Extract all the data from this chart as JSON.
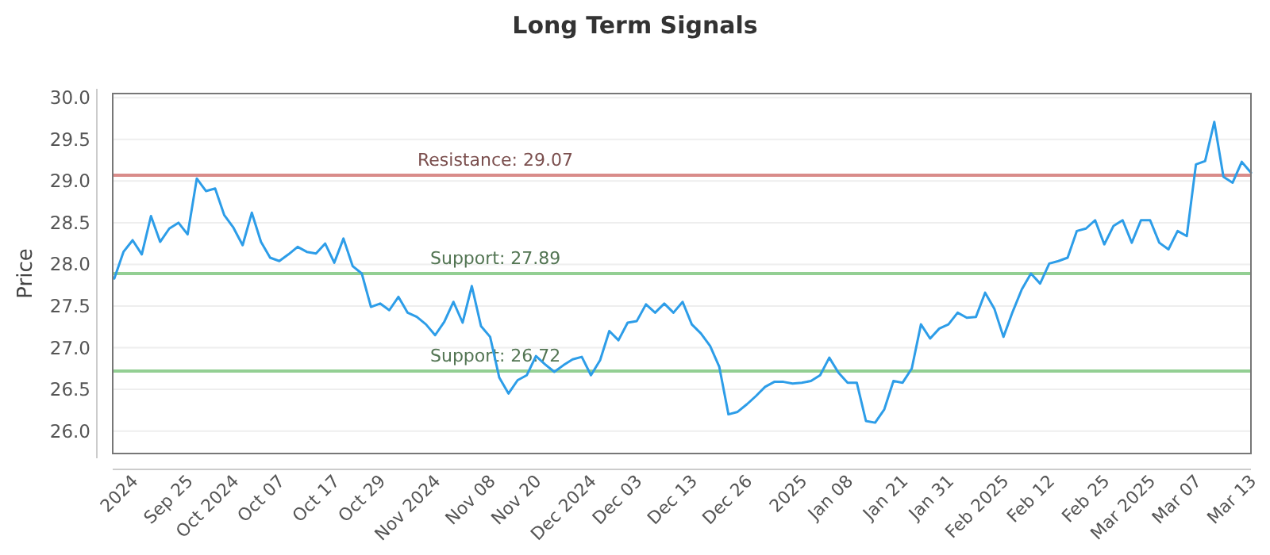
{
  "chart_data": {
    "type": "line",
    "title": "Long Term Signals",
    "ylabel": "Price",
    "categories": [
      null,
      null,
      "2024",
      null,
      null,
      null,
      null,
      null,
      "Sep 25",
      null,
      null,
      null,
      null,
      "Oct 2024",
      null,
      null,
      null,
      null,
      "Oct 07",
      null,
      null,
      null,
      null,
      null,
      "Oct 17",
      null,
      null,
      null,
      null,
      "Oct 29",
      null,
      null,
      null,
      null,
      null,
      "Nov 2024",
      null,
      null,
      null,
      null,
      null,
      "Nov 08",
      null,
      null,
      null,
      null,
      "Nov 20",
      null,
      null,
      null,
      null,
      null,
      "Dec 2024",
      null,
      null,
      null,
      null,
      "Dec 03",
      null,
      null,
      null,
      null,
      null,
      "Dec 13",
      null,
      null,
      null,
      null,
      null,
      "Dec 26",
      null,
      null,
      null,
      null,
      null,
      "2025",
      null,
      null,
      null,
      null,
      "Jan 08",
      null,
      null,
      null,
      null,
      null,
      "Jan 21",
      null,
      null,
      null,
      null,
      "Jan 31",
      null,
      null,
      null,
      null,
      null,
      "Feb 2025",
      null,
      null,
      null,
      null,
      "Feb 12",
      null,
      null,
      null,
      null,
      null,
      "Feb 25",
      null,
      null,
      null,
      null,
      "Mar 2025",
      null,
      null,
      null,
      null,
      "Mar 07",
      null,
      null,
      null,
      null,
      null,
      "Mar 13"
    ],
    "series": [
      {
        "color": "#2d9de8",
        "values": [
          27.83,
          28.15,
          28.29,
          28.12,
          28.58,
          28.27,
          28.43,
          28.5,
          28.36,
          29.03,
          28.88,
          28.91,
          28.59,
          28.44,
          28.23,
          28.62,
          28.27,
          28.08,
          28.04,
          28.12,
          28.21,
          28.15,
          28.13,
          28.25,
          28.02,
          28.31,
          27.98,
          27.89,
          27.49,
          27.53,
          27.45,
          27.61,
          27.42,
          27.37,
          27.28,
          27.15,
          27.31,
          27.55,
          27.3,
          27.74,
          27.26,
          27.13,
          26.64,
          26.45,
          26.61,
          26.67,
          26.9,
          26.8,
          26.71,
          26.79,
          26.86,
          26.89,
          26.67,
          26.85,
          27.2,
          27.09,
          27.3,
          27.32,
          27.52,
          27.42,
          27.53,
          27.42,
          27.55,
          27.28,
          27.17,
          27.02,
          26.77,
          26.2,
          26.23,
          26.32,
          26.42,
          26.53,
          26.59,
          26.59,
          26.57,
          26.58,
          26.6,
          26.67,
          26.88,
          26.7,
          26.58,
          26.58,
          26.12,
          26.1,
          26.26,
          26.6,
          26.58,
          26.75,
          27.28,
          27.11,
          27.23,
          27.28,
          27.42,
          27.36,
          27.37,
          27.66,
          27.47,
          27.13,
          27.43,
          27.7,
          27.89,
          27.77,
          28.01,
          28.04,
          28.08,
          28.4,
          28.43,
          28.53,
          28.24,
          28.46,
          28.53,
          28.26,
          28.53,
          28.53,
          28.26,
          28.18,
          28.4,
          28.34,
          29.2,
          29.24,
          29.71,
          29.05,
          28.98,
          29.23,
          29.1
        ]
      }
    ],
    "ylim": [
      25.73,
      30.05
    ],
    "yticks": [
      {
        "value": 26,
        "label": "26.0"
      },
      {
        "value": 26.5,
        "label": "26.5"
      },
      {
        "value": 27,
        "label": "27.0"
      },
      {
        "value": 27.5,
        "label": "27.5"
      },
      {
        "value": 28,
        "label": "28.0"
      },
      {
        "value": 28.5,
        "label": "28.5"
      },
      {
        "value": 29,
        "label": "29.0"
      },
      {
        "value": 29.5,
        "label": "29.5"
      },
      {
        "value": 30,
        "label": "30.0"
      }
    ],
    "grid": "y",
    "marker": "none",
    "line_style": "solid",
    "ref_lines": [
      {
        "axis": "y",
        "value": 29.07,
        "label": "Resistance: 29.07",
        "color": "#d98c8a"
      },
      {
        "axis": "y",
        "value": 27.89,
        "label": "Support: 27.89",
        "color": "#93cf93"
      },
      {
        "axis": "y",
        "value": 26.72,
        "label": "Support: 26.72",
        "color": "#93cf93"
      }
    ]
  }
}
